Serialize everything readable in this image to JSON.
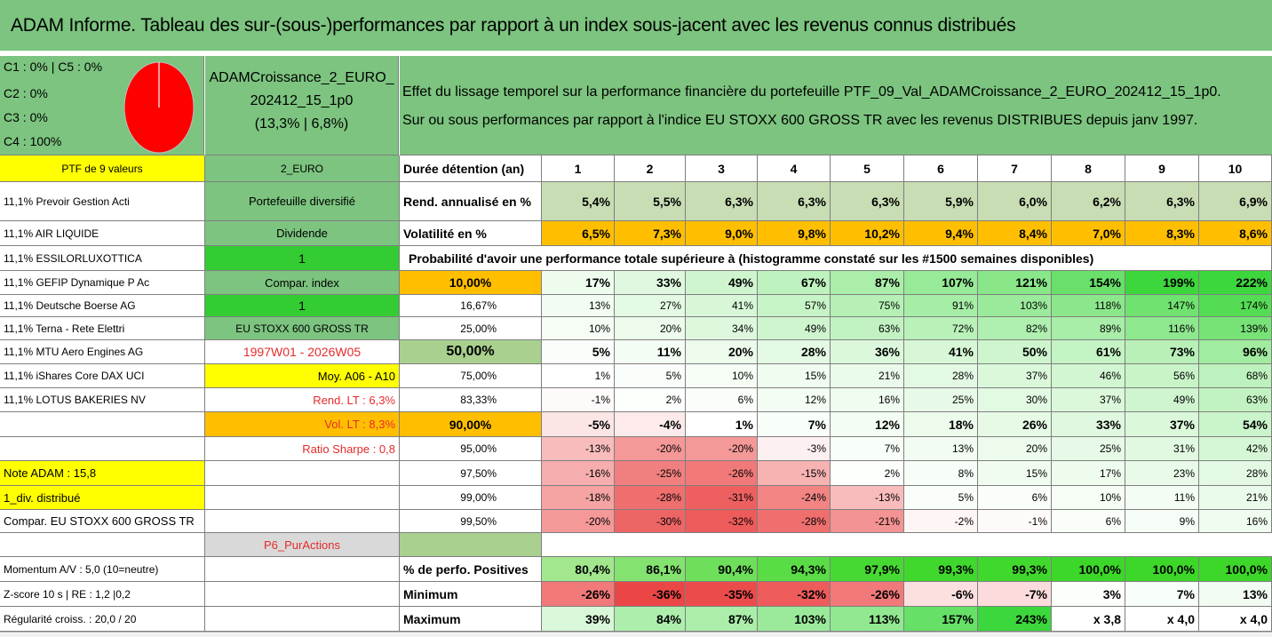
{
  "title": "ADAM Informe. Tableau des sur-(sous-)performances par rapport à un index sous-jacent avec les revenus connus distribués",
  "info": {
    "l1": "C1 : 0% | C5 : 0%",
    "l2": "C2 : 0%",
    "l3": "C3 : 0%",
    "l4": "C4 : 100%"
  },
  "portfolio": {
    "name1": "ADAMCroissance_2_EURO_",
    "name2": "202412_15_1p0",
    "perf": "(13,3% | 6,8%)"
  },
  "description": {
    "line1": "Effet du lissage temporel sur la performance financière du portefeuille PTF_09_Val_ADAMCroissance_2_EURO_202412_15_1p0.",
    "line2": "Sur ou sous performances par rapport à l'indice EU STOXX 600 GROSS TR avec les revenus DISTRIBUES depuis janv 1997."
  },
  "colors": {
    "green": "#7cc47f",
    "yellow": "#ffff00",
    "orange": "#ffbf00",
    "bright_green": "#33cc33",
    "red_text": "#e52b2b"
  },
  "col_a": [
    "PTF de 9 valeurs",
    "11,1% Prevoir Gestion Acti",
    "11,1% AIR LIQUIDE",
    "11,1% ESSILORLUXOTTICA",
    "11,1% GEFIP Dynamique P Ac",
    "11,1% Deutsche Boerse AG",
    "11,1% Terna - Rete Elettri",
    "11,1% MTU Aero Engines AG",
    "11,1% iShares Core DAX UCI",
    "11,1% LOTUS BAKERIES NV",
    "",
    "",
    "Note ADAM : 15,8",
    "1_div. distribué",
    "Compar. EU STOXX 600 GROSS TR",
    "",
    "Momentum A/V : 5,0 (10=neutre)",
    "Z-score 10 s | RE : 1,2 |0,2",
    "Régularité croiss. : 20,0 / 20"
  ],
  "col_b": [
    "2_EURO",
    "Portefeuille diversifié",
    "Dividende",
    "1",
    "Compar. index",
    "1",
    "EU STOXX 600 GROSS TR",
    "1997W01 - 2026W05",
    "Moy. A06 - A10",
    "Rend. LT : 6,3%",
    "Vol. LT : 8,3%",
    "Ratio Sharpe : 0,8",
    "",
    "",
    "",
    "P6_PurActions",
    "",
    "",
    ""
  ],
  "header": {
    "label": "Durée détention (an)",
    "years": [
      "1",
      "2",
      "3",
      "4",
      "5",
      "6",
      "7",
      "8",
      "9",
      "10"
    ]
  },
  "rend": {
    "label": "Rend. annualisé en %",
    "values": [
      "5,4%",
      "5,5%",
      "6,3%",
      "6,3%",
      "6,3%",
      "5,9%",
      "6,0%",
      "6,2%",
      "6,3%",
      "6,9%"
    ]
  },
  "vol": {
    "label": "Volatilité en %",
    "values": [
      "6,5%",
      "7,3%",
      "9,0%",
      "9,8%",
      "10,2%",
      "9,4%",
      "8,4%",
      "7,0%",
      "8,3%",
      "8,6%"
    ]
  },
  "proba_title": "Probabilité d'avoir une performance totale supérieure à (histogramme constaté sur les #1500 semaines disponibles)",
  "prob_rows": [
    {
      "p": "10,00%",
      "v": [
        "17%",
        "33%",
        "49%",
        "67%",
        "87%",
        "107%",
        "121%",
        "154%",
        "199%",
        "222%"
      ]
    },
    {
      "p": "16,67%",
      "v": [
        "13%",
        "27%",
        "41%",
        "57%",
        "75%",
        "91%",
        "103%",
        "118%",
        "147%",
        "174%"
      ]
    },
    {
      "p": "25,00%",
      "v": [
        "10%",
        "20%",
        "34%",
        "49%",
        "63%",
        "72%",
        "82%",
        "89%",
        "116%",
        "139%"
      ]
    },
    {
      "p": "50,00%",
      "v": [
        "5%",
        "11%",
        "20%",
        "28%",
        "36%",
        "41%",
        "50%",
        "61%",
        "73%",
        "96%"
      ]
    },
    {
      "p": "75,00%",
      "v": [
        "1%",
        "5%",
        "10%",
        "15%",
        "21%",
        "28%",
        "37%",
        "46%",
        "56%",
        "68%"
      ]
    },
    {
      "p": "83,33%",
      "v": [
        "-1%",
        "2%",
        "6%",
        "12%",
        "16%",
        "25%",
        "30%",
        "37%",
        "49%",
        "63%"
      ]
    },
    {
      "p": "90,00%",
      "v": [
        "-5%",
        "-4%",
        "1%",
        "7%",
        "12%",
        "18%",
        "26%",
        "33%",
        "37%",
        "54%"
      ]
    },
    {
      "p": "95,00%",
      "v": [
        "-13%",
        "-20%",
        "-20%",
        "-3%",
        "7%",
        "13%",
        "20%",
        "25%",
        "31%",
        "42%"
      ]
    },
    {
      "p": "97,50%",
      "v": [
        "-16%",
        "-25%",
        "-26%",
        "-15%",
        "2%",
        "8%",
        "15%",
        "17%",
        "23%",
        "28%"
      ]
    },
    {
      "p": "99,00%",
      "v": [
        "-18%",
        "-28%",
        "-31%",
        "-24%",
        "-13%",
        "5%",
        "6%",
        "10%",
        "11%",
        "21%"
      ]
    },
    {
      "p": "99,50%",
      "v": [
        "-20%",
        "-30%",
        "-32%",
        "-28%",
        "-21%",
        "-2%",
        "-1%",
        "6%",
        "9%",
        "16%"
      ]
    }
  ],
  "pos": {
    "label": "% de perfo. Positives",
    "values": [
      "80,4%",
      "86,1%",
      "90,4%",
      "94,3%",
      "97,9%",
      "99,3%",
      "99,3%",
      "100,0%",
      "100,0%",
      "100,0%"
    ]
  },
  "min": {
    "label": "Minimum",
    "values": [
      "-26%",
      "-36%",
      "-35%",
      "-32%",
      "-26%",
      "-6%",
      "-7%",
      "3%",
      "7%",
      "13%"
    ]
  },
  "max": {
    "label": "Maximum",
    "values": [
      "39%",
      "84%",
      "87%",
      "103%",
      "113%",
      "157%",
      "243%",
      "x 3,8",
      "x 4,0",
      "x 4,0"
    ]
  }
}
